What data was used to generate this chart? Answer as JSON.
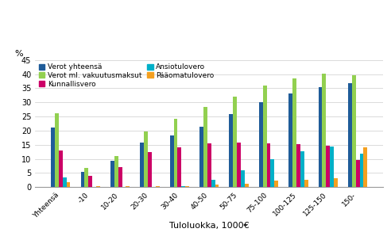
{
  "categories": [
    "Yhteensä",
    "-10",
    "10-20",
    "20-30",
    "30-40",
    "40-50",
    "50-75",
    "75-100",
    "100-125",
    "125-150",
    "150-"
  ],
  "series": {
    "Verot yhteensä": [
      21.1,
      5.4,
      9.4,
      15.8,
      18.4,
      21.5,
      25.9,
      30.2,
      33.2,
      35.5,
      36.7
    ],
    "Verot ml. vakuutusmaksut": [
      26.2,
      6.7,
      11.0,
      19.7,
      24.1,
      28.3,
      32.1,
      35.9,
      38.6,
      40.3,
      39.7
    ],
    "Kunnallisvero": [
      13.1,
      4.0,
      7.1,
      12.5,
      14.2,
      15.5,
      15.7,
      15.6,
      15.1,
      14.8,
      9.7
    ],
    "Ansiotulovero": [
      3.5,
      0.0,
      0.0,
      0.0,
      0.5,
      2.6,
      6.1,
      9.9,
      12.7,
      14.5,
      11.8
    ],
    "Pääomatulovero": [
      1.8,
      0.5,
      0.5,
      0.5,
      0.5,
      0.9,
      1.2,
      2.3,
      2.5,
      3.1,
      14.2
    ]
  },
  "colors": {
    "Verot yhteensä": "#1f5c99",
    "Verot ml. vakuutusmaksut": "#92d050",
    "Kunnallisvero": "#cc0066",
    "Ansiotulovero": "#00b0c8",
    "Pääomatulovero": "#f4a020"
  },
  "ylim": [
    0,
    45
  ],
  "yticks": [
    0,
    5,
    10,
    15,
    20,
    25,
    30,
    35,
    40,
    45
  ],
  "ylabel": "%",
  "xlabel": "Tuloluokka, 1000€",
  "bar_width": 0.13,
  "legend_cols": 2,
  "legend_order": [
    "Verot yhteensä",
    "Verot ml. vakuutusmaksut",
    "Kunnallisvero",
    "Ansiotulovero",
    "Pääomatulovero"
  ],
  "background_color": "#ffffff",
  "grid_color": "#cccccc"
}
